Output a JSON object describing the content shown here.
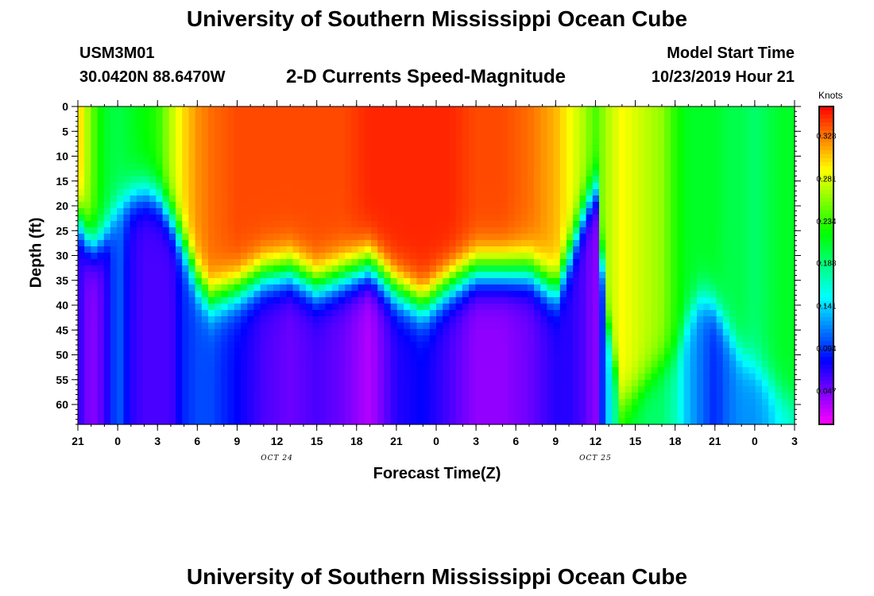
{
  "page": {
    "title_top": "University of Southern Mississippi Ocean Cube",
    "title_bottom": "University of Southern Mississippi Ocean Cube",
    "station_id": "USM3M01",
    "coordinates": "30.0420N 88.6470W",
    "plot_title": "2-D Currents Speed-Magnitude",
    "model_start_label": "Model Start Time",
    "model_start_value": "10/23/2019 Hour 21"
  },
  "chart_data": {
    "type": "heatmap",
    "title": "2-D Currents Speed-Magnitude",
    "xlabel": "Forecast Time(Z)",
    "ylabel": "Depth (ft)",
    "x_range_hours_from_start": [
      0,
      54
    ],
    "y_range_ft": [
      0,
      64
    ],
    "x_tick_labels": [
      "21",
      "0",
      "3",
      "6",
      "9",
      "12",
      "15",
      "18",
      "21",
      "0",
      "3",
      "6",
      "9",
      "12",
      "15",
      "18",
      "21",
      "0",
      "3"
    ],
    "y_tick_labels": [
      "0",
      "5",
      "10",
      "15",
      "20",
      "25",
      "30",
      "35",
      "40",
      "45",
      "50",
      "55",
      "60"
    ],
    "y_tick_values": [
      0,
      5,
      10,
      15,
      20,
      25,
      30,
      35,
      40,
      45,
      50,
      55,
      60
    ],
    "date_labels": [
      {
        "text": "OCT 24",
        "hour": 15
      },
      {
        "text": "OCT 25",
        "hour": 39
      }
    ],
    "colorbar": {
      "unit": "Knots",
      "tick_labels": [
        "0.328",
        "0.281",
        "0.234",
        "0.188",
        "0.141",
        "0.094",
        "0.047"
      ],
      "tick_values": [
        0.328,
        0.281,
        0.234,
        0.188,
        0.141,
        0.094,
        0.047
      ],
      "range": [
        0.01,
        0.36
      ]
    },
    "profiles": [
      {
        "hour": 0,
        "surface": 0.31,
        "bottom": 0.07,
        "mid_depth": 22
      },
      {
        "hour": 1,
        "surface": 0.25,
        "bottom": 0.04,
        "mid_depth": 28
      },
      {
        "hour": 2,
        "surface": 0.21,
        "bottom": 0.06,
        "mid_depth": 26
      },
      {
        "hour": 3,
        "surface": 0.2,
        "bottom": 0.11,
        "mid_depth": 20
      },
      {
        "hour": 4,
        "surface": 0.21,
        "bottom": 0.07,
        "mid_depth": 18
      },
      {
        "hour": 5,
        "surface": 0.22,
        "bottom": 0.06,
        "mid_depth": 17
      },
      {
        "hour": 6,
        "surface": 0.23,
        "bottom": 0.06,
        "mid_depth": 18
      },
      {
        "hour": 7,
        "surface": 0.27,
        "bottom": 0.06,
        "mid_depth": 22
      },
      {
        "hour": 8,
        "surface": 0.3,
        "bottom": 0.09,
        "mid_depth": 28
      },
      {
        "hour": 9,
        "surface": 0.32,
        "bottom": 0.1,
        "mid_depth": 35
      },
      {
        "hour": 10,
        "surface": 0.33,
        "bottom": 0.1,
        "mid_depth": 39
      },
      {
        "hour": 12,
        "surface": 0.34,
        "bottom": 0.08,
        "mid_depth": 37
      },
      {
        "hour": 14,
        "surface": 0.34,
        "bottom": 0.06,
        "mid_depth": 34
      },
      {
        "hour": 16,
        "surface": 0.34,
        "bottom": 0.05,
        "mid_depth": 33
      },
      {
        "hour": 18,
        "surface": 0.34,
        "bottom": 0.06,
        "mid_depth": 36
      },
      {
        "hour": 20,
        "surface": 0.34,
        "bottom": 0.05,
        "mid_depth": 34
      },
      {
        "hour": 22,
        "surface": 0.35,
        "bottom": 0.03,
        "mid_depth": 32
      },
      {
        "hour": 24,
        "surface": 0.35,
        "bottom": 0.07,
        "mid_depth": 37
      },
      {
        "hour": 26,
        "surface": 0.35,
        "bottom": 0.08,
        "mid_depth": 40
      },
      {
        "hour": 28,
        "surface": 0.35,
        "bottom": 0.06,
        "mid_depth": 36
      },
      {
        "hour": 30,
        "surface": 0.34,
        "bottom": 0.04,
        "mid_depth": 33
      },
      {
        "hour": 32,
        "surface": 0.34,
        "bottom": 0.04,
        "mid_depth": 33
      },
      {
        "hour": 34,
        "surface": 0.33,
        "bottom": 0.05,
        "mid_depth": 33
      },
      {
        "hour": 35,
        "surface": 0.32,
        "bottom": 0.06,
        "mid_depth": 35
      },
      {
        "hour": 36,
        "surface": 0.31,
        "bottom": 0.07,
        "mid_depth": 37
      },
      {
        "hour": 37,
        "surface": 0.29,
        "bottom": 0.07,
        "mid_depth": 30
      },
      {
        "hour": 38,
        "surface": 0.27,
        "bottom": 0.06,
        "mid_depth": 22
      },
      {
        "hour": 39,
        "surface": 0.24,
        "bottom": 0.04,
        "mid_depth": 16
      },
      {
        "hour": 40,
        "surface": 0.27,
        "bottom": 0.14,
        "mid_depth": 45
      },
      {
        "hour": 41,
        "surface": 0.29,
        "bottom": 0.22,
        "mid_depth": 60
      },
      {
        "hour": 42,
        "surface": 0.28,
        "bottom": 0.2,
        "mid_depth": 58
      },
      {
        "hour": 43,
        "surface": 0.27,
        "bottom": 0.19,
        "mid_depth": 55
      },
      {
        "hour": 44,
        "surface": 0.26,
        "bottom": 0.19,
        "mid_depth": 52
      },
      {
        "hour": 45,
        "surface": 0.23,
        "bottom": 0.17,
        "mid_depth": 50
      },
      {
        "hour": 46,
        "surface": 0.21,
        "bottom": 0.13,
        "mid_depth": 42
      },
      {
        "hour": 47,
        "surface": 0.21,
        "bottom": 0.11,
        "mid_depth": 38
      },
      {
        "hour": 48,
        "surface": 0.21,
        "bottom": 0.09,
        "mid_depth": 40
      },
      {
        "hour": 49,
        "surface": 0.2,
        "bottom": 0.11,
        "mid_depth": 45
      },
      {
        "hour": 50,
        "surface": 0.2,
        "bottom": 0.12,
        "mid_depth": 50
      },
      {
        "hour": 51,
        "surface": 0.19,
        "bottom": 0.12,
        "mid_depth": 52
      },
      {
        "hour": 52,
        "surface": 0.2,
        "bottom": 0.13,
        "mid_depth": 55
      },
      {
        "hour": 53,
        "surface": 0.21,
        "bottom": 0.15,
        "mid_depth": 58
      },
      {
        "hour": 54,
        "surface": 0.21,
        "bottom": 0.16,
        "mid_depth": 60
      }
    ]
  }
}
